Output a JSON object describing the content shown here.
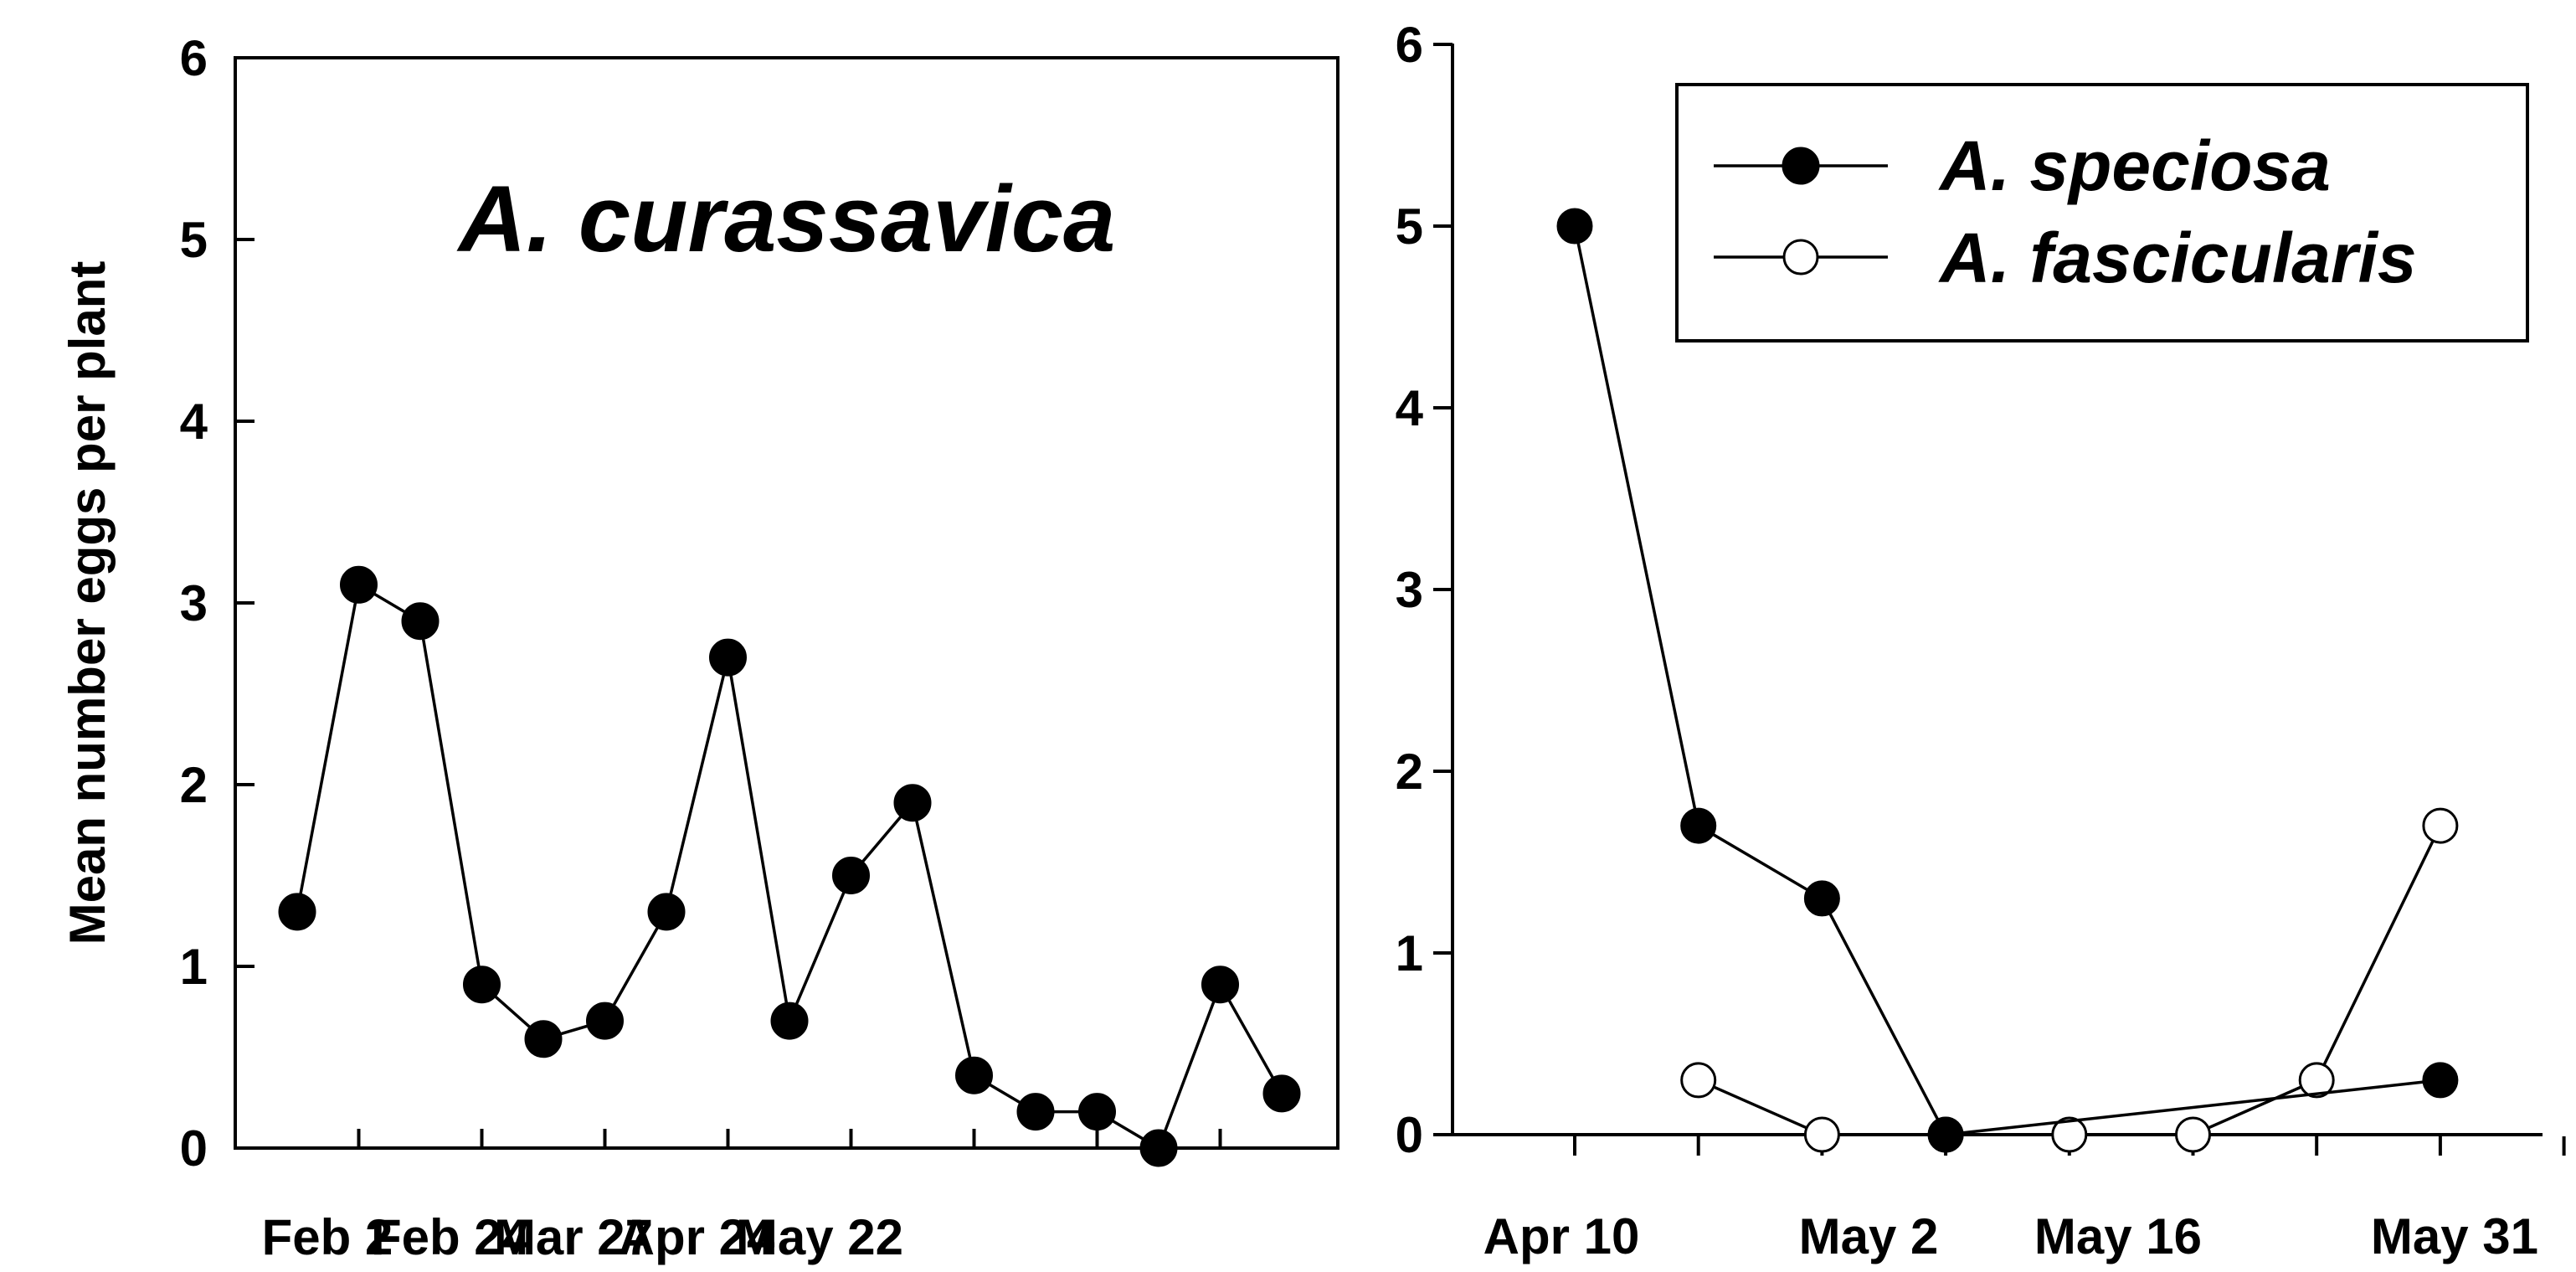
{
  "chart_data": [
    {
      "type": "line",
      "title": "A. curassavica",
      "xlabel": "",
      "ylabel": "Mean number eggs per plant",
      "ylim": [
        0,
        6
      ],
      "yticks": [
        "0",
        "1",
        "2",
        "3",
        "4",
        "5",
        "6"
      ],
      "xtick_labels": [
        "Feb 2",
        "Feb 24",
        "Mar 27",
        "Apr 24",
        "May 22"
      ],
      "series": [
        {
          "name": "A. curassavica",
          "marker": "filled",
          "values": [
            1.3,
            3.1,
            2.9,
            0.9,
            0.6,
            0.7,
            1.3,
            2.7,
            0.7,
            1.5,
            1.9,
            0.4,
            0.2,
            0.2,
            0.0,
            0.9,
            0.3
          ]
        }
      ]
    },
    {
      "type": "line",
      "title": "",
      "xlabel": "",
      "ylabel": "",
      "ylim": [
        0,
        6
      ],
      "yticks": [
        "0",
        "1",
        "2",
        "3",
        "4",
        "5",
        "6"
      ],
      "xtick_labels": [
        "Apr 10",
        "",
        "May 2",
        "",
        "May 16",
        "",
        "May 31"
      ],
      "legend_position": "top-right",
      "series": [
        {
          "name": "A. speciosa",
          "marker": "filled",
          "values": [
            5.0,
            1.7,
            1.3,
            0.0,
            null,
            null,
            null,
            0.3
          ]
        },
        {
          "name": "A. fascicularis",
          "marker": "open",
          "values": [
            null,
            0.3,
            0.0,
            0.0,
            0.0,
            0.0,
            0.3,
            1.7
          ]
        }
      ]
    }
  ]
}
